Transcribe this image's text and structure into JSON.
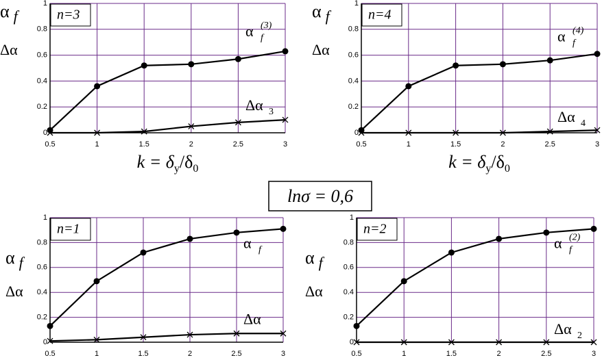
{
  "chart_data": [
    {
      "type": "line",
      "panel": "n=3",
      "ylabel": "α",
      "ylabel_sub": "f",
      "ylabel2": "Δα",
      "xlabel": [
        "k = δ",
        "y",
        "/δ",
        "0"
      ],
      "x": [
        0.5,
        1,
        1.5,
        2,
        2.5,
        3
      ],
      "xlim": [
        0.5,
        3
      ],
      "xticks": [
        0.5,
        1,
        1.5,
        2,
        2.5,
        3
      ],
      "ylim": [
        0,
        1
      ],
      "yticks": [
        0,
        0.2,
        0.4,
        0.6,
        0.8,
        1
      ],
      "grid": true,
      "grid_color": "#6a2a88",
      "series": [
        {
          "name": "α",
          "sub": "f",
          "sup": "(3)",
          "color": "#000000",
          "marker": "circle",
          "values": [
            0.02,
            0.36,
            0.52,
            0.53,
            0.57,
            0.63
          ]
        },
        {
          "name": "Δα",
          "sub": "3",
          "color": "#000000",
          "marker": "cross",
          "values": [
            0,
            0,
            0.01,
            0.05,
            0.08,
            0.1
          ]
        }
      ]
    },
    {
      "type": "line",
      "panel": "n=4",
      "ylabel": "α",
      "ylabel_sub": "f",
      "ylabel2": "Δα",
      "xlabel": [
        "k = δ",
        "y",
        "/δ",
        "0"
      ],
      "x": [
        0.5,
        1,
        1.5,
        2,
        2.5,
        3
      ],
      "xlim": [
        0.5,
        3
      ],
      "xticks": [
        0.5,
        1,
        1.5,
        2,
        2.5,
        3
      ],
      "ylim": [
        0,
        1
      ],
      "yticks": [
        0,
        0.2,
        0.4,
        0.6,
        0.8,
        1
      ],
      "grid": true,
      "grid_color": "#6a2a88",
      "series": [
        {
          "name": "α",
          "sub": "f",
          "sup": "(4)",
          "color": "#000000",
          "marker": "circle",
          "values": [
            0.02,
            0.36,
            0.52,
            0.53,
            0.56,
            0.61
          ]
        },
        {
          "name": "Δα",
          "sub": "4",
          "color": "#000000",
          "marker": "cross",
          "values": [
            0,
            0,
            0,
            0,
            0.01,
            0.02
          ]
        }
      ]
    },
    {
      "type": "line",
      "panel": "n=1",
      "ylabel": "α",
      "ylabel_sub": "f",
      "ylabel2": "Δα",
      "x": [
        0.5,
        1,
        1.5,
        2,
        2.5,
        3
      ],
      "xlim": [
        0.5,
        3
      ],
      "xticks": [
        0.5,
        1,
        1.5,
        2,
        2.5,
        3
      ],
      "ylim": [
        0,
        1
      ],
      "yticks": [
        0,
        0.2,
        0.4,
        0.6,
        0.8,
        1
      ],
      "grid": true,
      "grid_color": "#6a2a88",
      "series": [
        {
          "name": "α",
          "sub": "f",
          "color": "#000000",
          "marker": "circle",
          "values": [
            0.13,
            0.49,
            0.72,
            0.83,
            0.88,
            0.91
          ]
        },
        {
          "name": "Δα",
          "color": "#000000",
          "marker": "cross",
          "values": [
            0.01,
            0.02,
            0.04,
            0.06,
            0.07,
            0.07
          ]
        }
      ]
    },
    {
      "type": "line",
      "panel": "n=2",
      "ylabel": "α",
      "ylabel_sub": "f",
      "ylabel2": "Δα",
      "x": [
        0.5,
        1,
        1.5,
        2,
        2.5,
        3
      ],
      "xlim": [
        0.5,
        3
      ],
      "xticks": [
        0.5,
        1,
        1.5,
        2,
        2.5,
        3
      ],
      "ylim": [
        0,
        1
      ],
      "yticks": [
        0,
        0.2,
        0.4,
        0.6,
        0.8,
        1
      ],
      "grid": true,
      "grid_color": "#6a2a88",
      "series": [
        {
          "name": "α",
          "sub": "f",
          "sup": "(2)",
          "color": "#000000",
          "marker": "circle",
          "values": [
            0.13,
            0.49,
            0.72,
            0.83,
            0.88,
            0.91
          ]
        },
        {
          "name": "Δα",
          "sub": "2",
          "color": "#000000",
          "marker": "cross",
          "values": [
            0,
            0,
            0,
            0,
            0,
            0
          ]
        }
      ]
    }
  ],
  "annotation": "lnσ = 0,6"
}
